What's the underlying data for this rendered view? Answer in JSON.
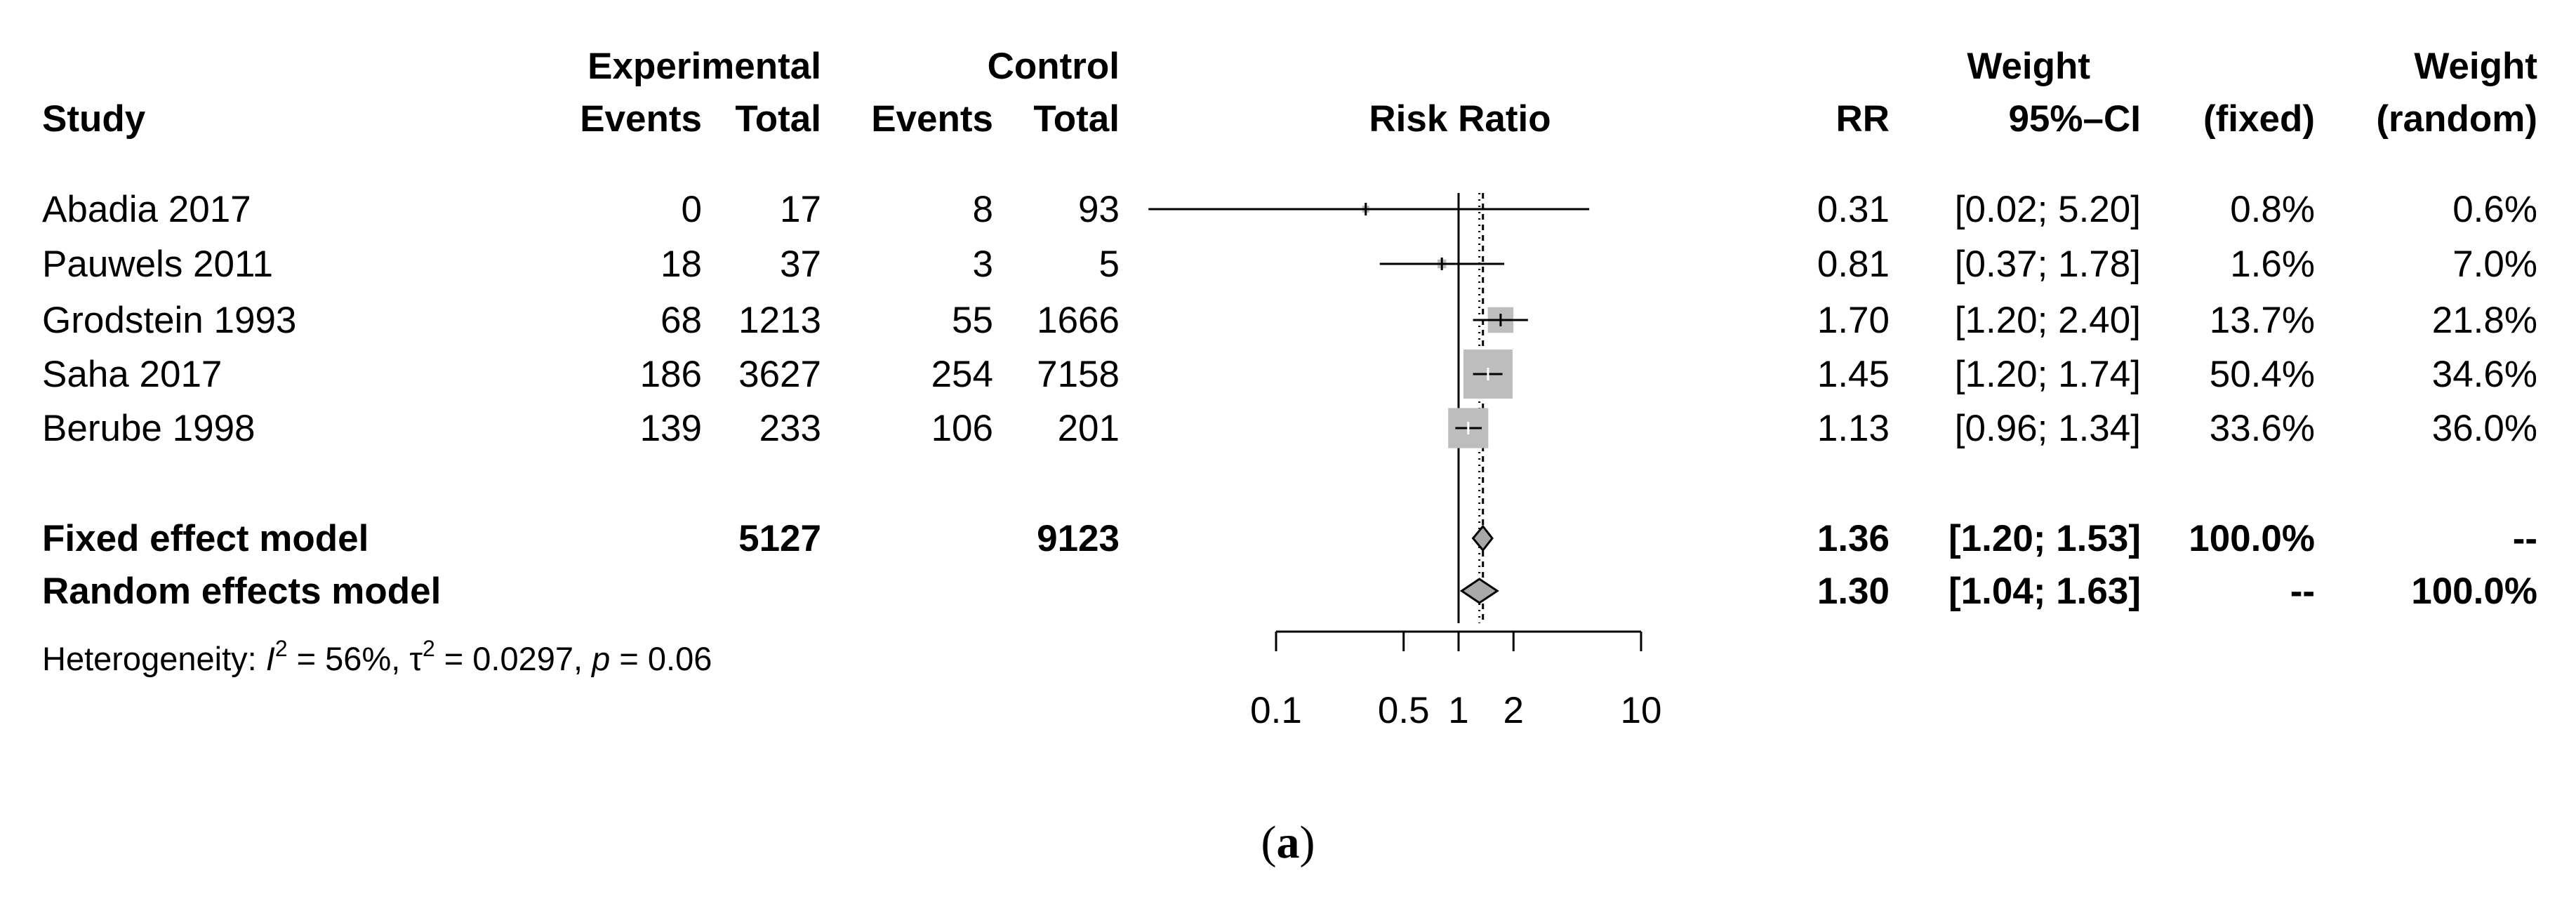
{
  "chart_data": {
    "type": "forest",
    "title": "Risk Ratio",
    "scale": "log",
    "x_ticks": [
      0.1,
      0.5,
      1,
      2,
      10
    ],
    "x_tick_labels": [
      "0.1",
      "0.5",
      "1",
      "2",
      "10"
    ],
    "reference_line": 1,
    "summary_line": 1.36,
    "headers": {
      "study": "Study",
      "experimental": "Experimental",
      "control": "Control",
      "events": "Events",
      "total": "Total",
      "rr": "RR",
      "ci": "95%–CI",
      "weight": "Weight",
      "fixed": "(fixed)",
      "random": "(random)"
    },
    "studies": [
      {
        "name": "Abadia 2017",
        "exp_events": "0",
        "exp_total": "17",
        "ctl_events": "8",
        "ctl_total": "93",
        "rr": 0.31,
        "lower": 0.02,
        "upper": 5.2,
        "rr_text": "0.31",
        "ci_text": "[0.02; 5.20]",
        "w_fixed_text": "0.8%",
        "w_random_text": "0.6%",
        "w_fixed": 0.8,
        "w_random": 0.6
      },
      {
        "name": "Pauwels 2011",
        "exp_events": "18",
        "exp_total": "37",
        "ctl_events": "3",
        "ctl_total": "5",
        "rr": 0.81,
        "lower": 0.37,
        "upper": 1.78,
        "rr_text": "0.81",
        "ci_text": "[0.37; 1.78]",
        "w_fixed_text": "1.6%",
        "w_random_text": "7.0%",
        "w_fixed": 1.6,
        "w_random": 7.0
      },
      {
        "name": "Grodstein 1993",
        "exp_events": "68",
        "exp_total": "1213",
        "ctl_events": "55",
        "ctl_total": "1666",
        "rr": 1.7,
        "lower": 1.2,
        "upper": 2.4,
        "rr_text": "1.70",
        "ci_text": "[1.20; 2.40]",
        "w_fixed_text": "13.7%",
        "w_random_text": "21.8%",
        "w_fixed": 13.7,
        "w_random": 21.8
      },
      {
        "name": "Saha 2017",
        "exp_events": "186",
        "exp_total": "3627",
        "ctl_events": "254",
        "ctl_total": "7158",
        "rr": 1.45,
        "lower": 1.2,
        "upper": 1.74,
        "rr_text": "1.45",
        "ci_text": "[1.20; 1.74]",
        "w_fixed_text": "50.4%",
        "w_random_text": "34.6%",
        "w_fixed": 50.4,
        "w_random": 34.6
      },
      {
        "name": "Berube 1998",
        "exp_events": "139",
        "exp_total": "233",
        "ctl_events": "106",
        "ctl_total": "201",
        "rr": 1.13,
        "lower": 0.96,
        "upper": 1.34,
        "rr_text": "1.13",
        "ci_text": "[0.96; 1.34]",
        "w_fixed_text": "33.6%",
        "w_random_text": "36.0%",
        "w_fixed": 33.6,
        "w_random": 36.0
      }
    ],
    "fixed_model": {
      "label": "Fixed effect model",
      "exp_total": "5127",
      "ctl_total": "9123",
      "rr": 1.36,
      "lower": 1.2,
      "upper": 1.53,
      "rr_text": "1.36",
      "ci_text": "[1.20; 1.53]",
      "w_fixed_text": "100.0%",
      "w_random_text": "--"
    },
    "random_model": {
      "label": "Random effects model",
      "rr": 1.3,
      "lower": 1.04,
      "upper": 1.63,
      "rr_text": "1.30",
      "ci_text": "[1.04; 1.63]",
      "w_fixed_text": "--",
      "w_random_text": "100.0%"
    },
    "heterogeneity": {
      "prefix": "Heterogeneity: ",
      "I2": "56%",
      "tau2": "0.0297",
      "p": "0.06"
    }
  },
  "caption": {
    "open": "(",
    "letter": "a",
    "close": ")"
  }
}
